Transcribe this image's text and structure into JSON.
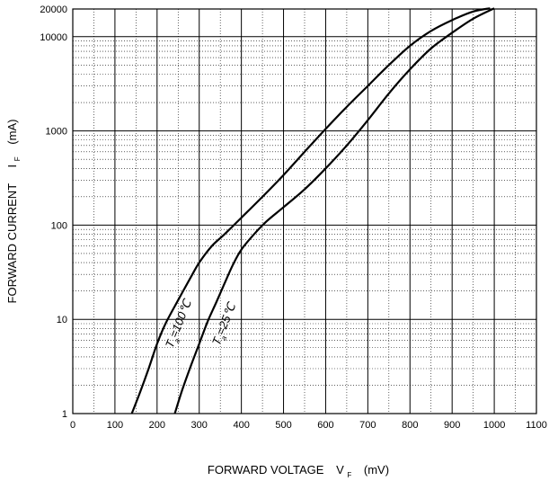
{
  "chart_data": {
    "type": "line",
    "title": "",
    "xlabel": {
      "main": "FORWARD VOLTAGE",
      "symbol": "V",
      "subscript": "F",
      "unit": "(mV)"
    },
    "ylabel": {
      "main": "FORWARD CURRENT",
      "symbol": "I",
      "subscript": "F",
      "unit": "(mA)"
    },
    "xlim": [
      0,
      1100
    ],
    "ylim": [
      1,
      20000
    ],
    "yscale": "log",
    "grid": true,
    "x_ticks": [
      "0",
      "100",
      "200",
      "300",
      "400",
      "500",
      "600",
      "700",
      "800",
      "900",
      "1000",
      "1100"
    ],
    "y_ticks": [
      {
        "value": 1,
        "label": "1"
      },
      {
        "value": 10,
        "label": "10"
      },
      {
        "value": 100,
        "label": "100"
      },
      {
        "value": 1000,
        "label": "1000"
      },
      {
        "value": 10000,
        "label": "10000"
      },
      {
        "value": 20000,
        "label": "20000"
      }
    ],
    "series": [
      {
        "name": "",
        "annotation": {
          "prefix": "T",
          "subscript": "a",
          "text": "=100℃"
        },
        "color": "#000000",
        "x": [
          140,
          160,
          180,
          200,
          220,
          250,
          280,
          300,
          330,
          360,
          400,
          450,
          500,
          550,
          600,
          650,
          700,
          750,
          800,
          850,
          900,
          950,
          990
        ],
        "y": [
          1,
          1.7,
          3,
          5.5,
          9,
          16,
          28,
          40,
          60,
          80,
          120,
          200,
          340,
          600,
          1050,
          1800,
          3000,
          5000,
          8000,
          11500,
          15000,
          18500,
          20000
        ]
      },
      {
        "name": "",
        "annotation": {
          "prefix": "T",
          "subscript": "a",
          "text": "=25℃"
        },
        "color": "#000000",
        "x": [
          242,
          260,
          280,
          300,
          320,
          340,
          360,
          380,
          400,
          430,
          460,
          500,
          550,
          600,
          650,
          700,
          750,
          800,
          850,
          900,
          950,
          1000
        ],
        "y": [
          1,
          1.8,
          3.2,
          5.5,
          9.5,
          15,
          24,
          38,
          55,
          80,
          110,
          155,
          240,
          400,
          700,
          1300,
          2500,
          4500,
          7500,
          11000,
          15500,
          20000
        ]
      }
    ]
  }
}
